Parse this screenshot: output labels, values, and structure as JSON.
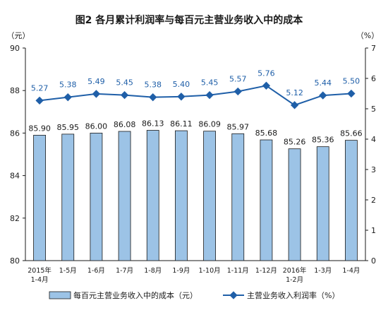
{
  "chart_data": {
    "type": "bar+line",
    "title": "图2  各月累计利润率与每百元主营业务收入中的成本",
    "left_unit": "（元）",
    "right_unit": "（%）",
    "left_axis": {
      "ylim": [
        80,
        90
      ],
      "ticks": [
        "80",
        "82",
        "84",
        "86",
        "88",
        "90"
      ]
    },
    "right_axis": {
      "ylim": [
        0,
        7
      ],
      "ticks": [
        "0",
        "1",
        "2",
        "3",
        "4",
        "5",
        "6",
        "7"
      ]
    },
    "categories": [
      [
        "2015年",
        "1-4月"
      ],
      [
        "1-5月"
      ],
      [
        "1-6月"
      ],
      [
        "1-7月"
      ],
      [
        "1-8月"
      ],
      [
        "1-9月"
      ],
      [
        "1-10月"
      ],
      [
        "1-11月"
      ],
      [
        "1-12月"
      ],
      [
        "2016年",
        "1-2月"
      ],
      [
        "1-3月"
      ],
      [
        "1-4月"
      ]
    ],
    "series": [
      {
        "name": "每百元主营业务收入中的成本（元）",
        "type": "bar",
        "axis": "left",
        "color": "#9cc3e6",
        "values": [
          85.9,
          85.95,
          86.0,
          86.08,
          86.13,
          86.11,
          86.09,
          85.97,
          85.68,
          85.26,
          85.36,
          85.66
        ],
        "labels": [
          "85.90",
          "85.95",
          "86.00",
          "86.08",
          "86.13",
          "86.11",
          "86.09",
          "85.97",
          "85.68",
          "85.26",
          "85.36",
          "85.66"
        ]
      },
      {
        "name": "主营业务收入利润率（%）",
        "type": "line",
        "axis": "right",
        "color": "#1f5fa8",
        "values": [
          5.27,
          5.38,
          5.49,
          5.45,
          5.38,
          5.4,
          5.45,
          5.57,
          5.76,
          5.12,
          5.44,
          5.5
        ],
        "labels": [
          "5.27",
          "5.38",
          "5.49",
          "5.45",
          "5.38",
          "5.40",
          "5.45",
          "5.57",
          "5.76",
          "5.12",
          "5.44",
          "5.50"
        ]
      }
    ],
    "legend": {
      "position": "bottom",
      "bar_label": "每百元主营业务收入中的成本（元）",
      "line_label": "主营业务收入利润率（%）"
    }
  }
}
